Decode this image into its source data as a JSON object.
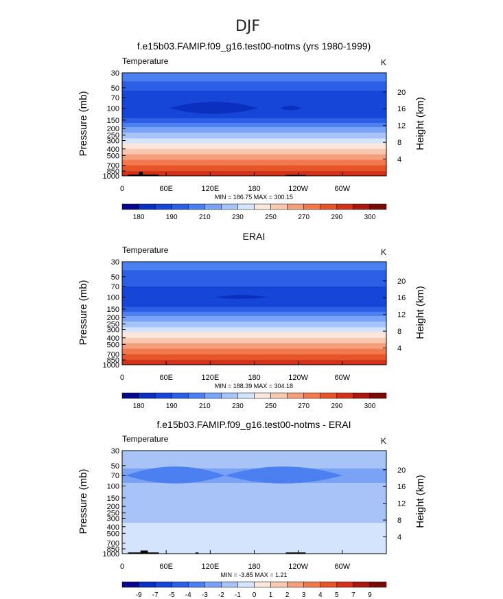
{
  "figure_title": "DJF",
  "panels": [
    {
      "title": "f.e15b03.FAMIP.f09_g16.test00-notms (yrs 1980-1999)",
      "variable": "Temperature",
      "units": "K",
      "ylabel_left": "Pressure  (mb)",
      "ylabel_right": "Height  (km)",
      "stats": "MIN = 186.75   MAX = 300.15"
    },
    {
      "title": "ERAI",
      "variable": "Temperature",
      "units": "K",
      "ylabel_left": "Pressure  (mb)",
      "ylabel_right": "Height  (km)",
      "stats": "MIN = 188.39   MAX = 304.18"
    },
    {
      "title": "f.e15b03.FAMIP.f09_g16.test00-notms - ERAI",
      "variable": "Temperature",
      "units": "K",
      "ylabel_left": "Pressure  (mb)",
      "ylabel_right": "Height  (km)",
      "stats": "MIN =   -3.85   MAX =    1.21"
    }
  ],
  "axes": {
    "pressure_ticks": [
      "30",
      "50",
      "70",
      "100",
      "150",
      "200",
      "250",
      "300",
      "400",
      "500",
      "700",
      "850",
      "1000"
    ],
    "height_ticks": [
      "20",
      "16",
      "12",
      "8",
      "4"
    ],
    "lon_ticks": [
      "0",
      "60E",
      "120E",
      "180",
      "120W",
      "60W"
    ]
  },
  "colorbars": [
    {
      "colors": [
        "#08088a",
        "#0b2fbf",
        "#1546d8",
        "#2c5fe6",
        "#4c7ff0",
        "#7aa2f5",
        "#a7c3f8",
        "#d3e4fc",
        "#fbe6dc",
        "#f8c8b0",
        "#f5a07c",
        "#f07a4e",
        "#e6552a",
        "#d2321a",
        "#a81810",
        "#7a0a08"
      ],
      "labels": [
        "180",
        "190",
        "210",
        "230",
        "250",
        "270",
        "290",
        "300"
      ]
    },
    {
      "colors": [
        "#08088a",
        "#0b2fbf",
        "#1546d8",
        "#2c5fe6",
        "#4c7ff0",
        "#7aa2f5",
        "#a7c3f8",
        "#d3e4fc",
        "#fbe6dc",
        "#f8c8b0",
        "#f5a07c",
        "#f07a4e",
        "#e6552a",
        "#d2321a",
        "#a81810",
        "#7a0a08"
      ],
      "labels": [
        "180",
        "190",
        "210",
        "230",
        "250",
        "270",
        "290",
        "300"
      ]
    },
    {
      "colors": [
        "#08088a",
        "#0b2fbf",
        "#1546d8",
        "#2c5fe6",
        "#4c7ff0",
        "#7aa2f5",
        "#a7c3f8",
        "#d3e4fc",
        "#fbe6dc",
        "#f8c8b0",
        "#f5a07c",
        "#f07a4e",
        "#e6552a",
        "#d2321a",
        "#a81810",
        "#7a0a08"
      ],
      "labels": [
        "-9",
        "-7",
        "-5",
        "-4",
        "-3",
        "-2",
        "-1",
        "0",
        "1",
        "2",
        "3",
        "4",
        "5",
        "7",
        "9"
      ]
    }
  ],
  "chart_data": [
    {
      "type": "heatmap",
      "title": "f.e15b03.FAMIP.f09_g16.test00-notms (yrs 1980-1999)",
      "xlabel": "",
      "ylabel": "Pressure  (mb)",
      "xlim": [
        0,
        360
      ],
      "ylim_mb": [
        1000,
        30
      ],
      "yscale": "log",
      "bands": [
        {
          "p_top": 30,
          "p_bot": 40,
          "value": 215,
          "color": "#4c7ff0"
        },
        {
          "p_top": 40,
          "p_bot": 55,
          "value": 210,
          "color": "#2c5fe6"
        },
        {
          "p_top": 55,
          "p_bot": 140,
          "value": 200,
          "color": "#1546d8"
        },
        {
          "p_top": 140,
          "p_bot": 165,
          "value": 210,
          "color": "#2c5fe6"
        },
        {
          "p_top": 165,
          "p_bot": 190,
          "value": 220,
          "color": "#4c7ff0"
        },
        {
          "p_top": 190,
          "p_bot": 230,
          "value": 230,
          "color": "#7aa2f5"
        },
        {
          "p_top": 230,
          "p_bot": 280,
          "value": 240,
          "color": "#a7c3f8"
        },
        {
          "p_top": 280,
          "p_bot": 330,
          "value": 245,
          "color": "#d3e4fc"
        },
        {
          "p_top": 330,
          "p_bot": 400,
          "value": 255,
          "color": "#fbe6dc"
        },
        {
          "p_top": 400,
          "p_bot": 480,
          "value": 262,
          "color": "#f8c8b0"
        },
        {
          "p_top": 480,
          "p_bot": 580,
          "value": 268,
          "color": "#f5a07c"
        },
        {
          "p_top": 580,
          "p_bot": 700,
          "value": 275,
          "color": "#f07a4e"
        },
        {
          "p_top": 700,
          "p_bot": 850,
          "value": 282,
          "color": "#e6552a"
        },
        {
          "p_top": 850,
          "p_bot": 1000,
          "value": 290,
          "color": "#d2321a"
        }
      ],
      "features": [
        {
          "shape": "lens",
          "lon_start": 65,
          "lon_end": 185,
          "p_center": 100,
          "p_half_height_frac": 0.25,
          "color": "#0b2fbf"
        },
        {
          "shape": "lens",
          "lon_start": 215,
          "lon_end": 245,
          "p_center": 100,
          "p_half_height_frac": 0.1,
          "color": "#0b2fbf"
        }
      ],
      "topography": [
        {
          "lon_start": 8,
          "lon_end": 50,
          "p_top": 960
        },
        {
          "lon_start": 23,
          "lon_end": 28,
          "p_top": 870
        },
        {
          "lon_start": 223,
          "lon_end": 250,
          "p_top": 970
        }
      ],
      "min": 186.75,
      "max": 300.15
    },
    {
      "type": "heatmap",
      "title": "ERAI",
      "xlabel": "",
      "ylabel": "Pressure  (mb)",
      "xlim": [
        0,
        360
      ],
      "ylim_mb": [
        1000,
        30
      ],
      "yscale": "log",
      "bands": [
        {
          "p_top": 30,
          "p_bot": 40,
          "value": 215,
          "color": "#4c7ff0"
        },
        {
          "p_top": 40,
          "p_bot": 70,
          "value": 210,
          "color": "#2c5fe6"
        },
        {
          "p_top": 70,
          "p_bot": 140,
          "value": 200,
          "color": "#1546d8"
        },
        {
          "p_top": 140,
          "p_bot": 165,
          "value": 210,
          "color": "#2c5fe6"
        },
        {
          "p_top": 165,
          "p_bot": 190,
          "value": 220,
          "color": "#4c7ff0"
        },
        {
          "p_top": 190,
          "p_bot": 230,
          "value": 230,
          "color": "#7aa2f5"
        },
        {
          "p_top": 230,
          "p_bot": 280,
          "value": 240,
          "color": "#a7c3f8"
        },
        {
          "p_top": 280,
          "p_bot": 330,
          "value": 245,
          "color": "#d3e4fc"
        },
        {
          "p_top": 330,
          "p_bot": 400,
          "value": 255,
          "color": "#fbe6dc"
        },
        {
          "p_top": 400,
          "p_bot": 480,
          "value": 262,
          "color": "#f8c8b0"
        },
        {
          "p_top": 480,
          "p_bot": 580,
          "value": 268,
          "color": "#f5a07c"
        },
        {
          "p_top": 580,
          "p_bot": 700,
          "value": 275,
          "color": "#f07a4e"
        },
        {
          "p_top": 700,
          "p_bot": 850,
          "value": 282,
          "color": "#e6552a"
        },
        {
          "p_top": 850,
          "p_bot": 1000,
          "value": 292,
          "color": "#d2321a"
        }
      ],
      "features": [
        {
          "shape": "lens",
          "lon_start": 125,
          "lon_end": 200,
          "p_center": 100,
          "p_half_height_frac": 0.08,
          "color": "#0b2fbf"
        }
      ],
      "topography": [],
      "min": 188.39,
      "max": 304.18
    },
    {
      "type": "heatmap",
      "title": "f.e15b03.FAMIP.f09_g16.test00-notms - ERAI",
      "xlabel": "",
      "ylabel": "Pressure  (mb)",
      "xlim": [
        0,
        360
      ],
      "ylim_mb": [
        1000,
        30
      ],
      "yscale": "log",
      "bands": [
        {
          "p_top": 30,
          "p_bot": 55,
          "value": -1.5,
          "color": "#a7c3f8"
        },
        {
          "p_top": 55,
          "p_bot": 90,
          "value": -2.5,
          "color": "#7aa2f5"
        },
        {
          "p_top": 90,
          "p_bot": 350,
          "value": -1.5,
          "color": "#a7c3f8"
        },
        {
          "p_top": 350,
          "p_bot": 1000,
          "value": -0.5,
          "color": "#d3e4fc"
        }
      ],
      "features": [
        {
          "shape": "lens",
          "lon_start": 5,
          "lon_end": 140,
          "p_center": 70,
          "p_half_height_frac": 0.35,
          "color": "#4c7ff0"
        },
        {
          "shape": "lens",
          "lon_start": 140,
          "lon_end": 300,
          "p_center": 70,
          "p_half_height_frac": 0.35,
          "color": "#4c7ff0"
        }
      ],
      "topography": [
        {
          "lon_start": 8,
          "lon_end": 50,
          "p_top": 960
        },
        {
          "lon_start": 25,
          "lon_end": 35,
          "p_top": 900
        },
        {
          "lon_start": 100,
          "lon_end": 104,
          "p_top": 960
        },
        {
          "lon_start": 223,
          "lon_end": 250,
          "p_top": 960
        }
      ],
      "min": -3.85,
      "max": 1.21
    }
  ]
}
